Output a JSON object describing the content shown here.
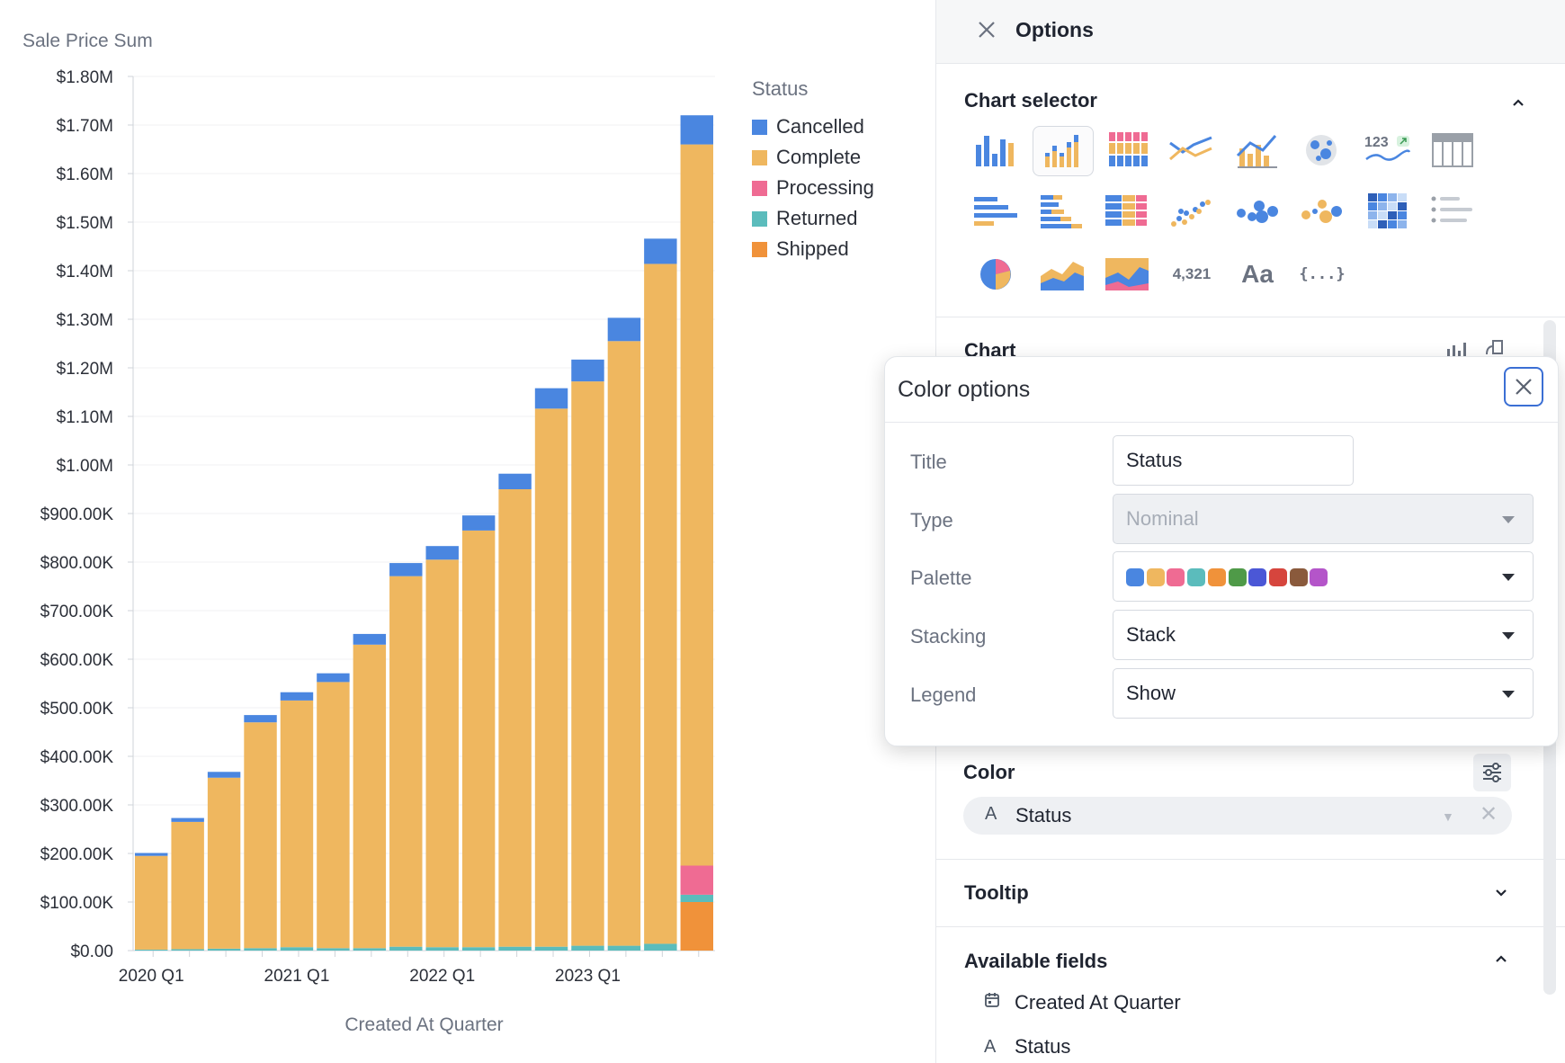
{
  "chart_data": {
    "type": "bar",
    "stacked": true,
    "ylabel": "Sale Price Sum",
    "xlabel": "Created At Quarter",
    "ylim": [
      0,
      1800000
    ],
    "yticks": [
      "$0.00",
      "$100.00K",
      "$200.00K",
      "$300.00K",
      "$400.00K",
      "$500.00K",
      "$600.00K",
      "$700.00K",
      "$800.00K",
      "$900.00K",
      "$1.00M",
      "$1.10M",
      "$1.20M",
      "$1.30M",
      "$1.40M",
      "$1.50M",
      "$1.60M",
      "$1.70M",
      "$1.80M"
    ],
    "ytick_values": [
      0,
      100000,
      200000,
      300000,
      400000,
      500000,
      600000,
      700000,
      800000,
      900000,
      1000000,
      1100000,
      1200000,
      1300000,
      1400000,
      1500000,
      1600000,
      1700000,
      1800000
    ],
    "xtick_labels": [
      {
        "label": "2020 Q1",
        "index": 0
      },
      {
        "label": "2021 Q1",
        "index": 4
      },
      {
        "label": "2022 Q1",
        "index": 8
      },
      {
        "label": "2023 Q1",
        "index": 12
      }
    ],
    "categories": [
      "2020 Q1",
      "2020 Q2",
      "2020 Q3",
      "2020 Q4",
      "2021 Q1",
      "2021 Q2",
      "2021 Q3",
      "2021 Q4",
      "2022 Q1",
      "2022 Q2",
      "2022 Q3",
      "2022 Q4",
      "2023 Q1",
      "2023 Q2",
      "2023 Q3",
      "2023 Q4"
    ],
    "legend_title": "Status",
    "legend_position": "top-right",
    "grid": true,
    "series": [
      {
        "name": "Shipped",
        "color": "#f0923a",
        "values": [
          0,
          0,
          0,
          0,
          0,
          0,
          0,
          0,
          0,
          0,
          0,
          0,
          0,
          0,
          0,
          100000
        ]
      },
      {
        "name": "Returned",
        "color": "#5bbcbc",
        "values": [
          2000,
          3000,
          4000,
          5000,
          7000,
          5000,
          5000,
          8000,
          7000,
          7000,
          8000,
          8000,
          10000,
          10000,
          14000,
          15000
        ]
      },
      {
        "name": "Processing",
        "color": "#ef6b93",
        "values": [
          0,
          0,
          0,
          0,
          0,
          0,
          0,
          0,
          0,
          0,
          0,
          0,
          0,
          0,
          0,
          60000
        ]
      },
      {
        "name": "Complete",
        "color": "#efb75f",
        "values": [
          193000,
          262000,
          352000,
          465000,
          508000,
          548000,
          625000,
          763000,
          798000,
          858000,
          942000,
          1108000,
          1162000,
          1245000,
          1400000,
          1485000
        ]
      },
      {
        "name": "Cancelled",
        "color": "#4a86e0",
        "values": [
          6000,
          8000,
          12000,
          15000,
          17000,
          18000,
          22000,
          27000,
          28000,
          31000,
          32000,
          42000,
          45000,
          48000,
          52000,
          60000
        ]
      }
    ],
    "legend_order": [
      "Cancelled",
      "Complete",
      "Processing",
      "Returned",
      "Shipped"
    ]
  },
  "panel": {
    "title": "Options",
    "chart_selector_title": "Chart selector",
    "chart_icons": [
      "bar-chart",
      "stacked-bar-chart",
      "percent-stacked-bar-chart",
      "line-chart",
      "bar-line-combo-chart",
      "map-chart",
      "single-value-trend-chart",
      "table-chart",
      "horizontal-bar-chart",
      "horizontal-stacked-bar-chart",
      "horizontal-percent-bar-chart",
      "scatter-chart",
      "bubble-chart",
      "colored-bubble-chart",
      "heatmap-chart",
      "list-chart",
      "pie-chart",
      "area-chart",
      "stacked-area-chart",
      "big-number-chart",
      "text-chart",
      "json-chart"
    ],
    "big_number_text": "4,321",
    "text_chart_text": "Aa",
    "json_chart_text": "{...}",
    "trend_number_text": "123",
    "chart_section_title": "Chart",
    "color_title": "Color",
    "color_field": "Status",
    "tooltip_title": "Tooltip",
    "available_fields_title": "Available fields",
    "fields": [
      "Created At Quarter",
      "Status"
    ]
  },
  "popover": {
    "title": "Color options",
    "rows": {
      "title_label": "Title",
      "title_value": "Status",
      "type_label": "Type",
      "type_value": "Nominal",
      "palette_label": "Palette",
      "stacking_label": "Stacking",
      "stacking_value": "Stack",
      "legend_label": "Legend",
      "legend_value": "Show"
    },
    "palette_colors": [
      "#4a86e0",
      "#efb75f",
      "#ef6b93",
      "#5bbcbc",
      "#f0923a",
      "#4f9a48",
      "#4b57d6",
      "#d6453d",
      "#8a5a3c",
      "#b455c9"
    ]
  }
}
